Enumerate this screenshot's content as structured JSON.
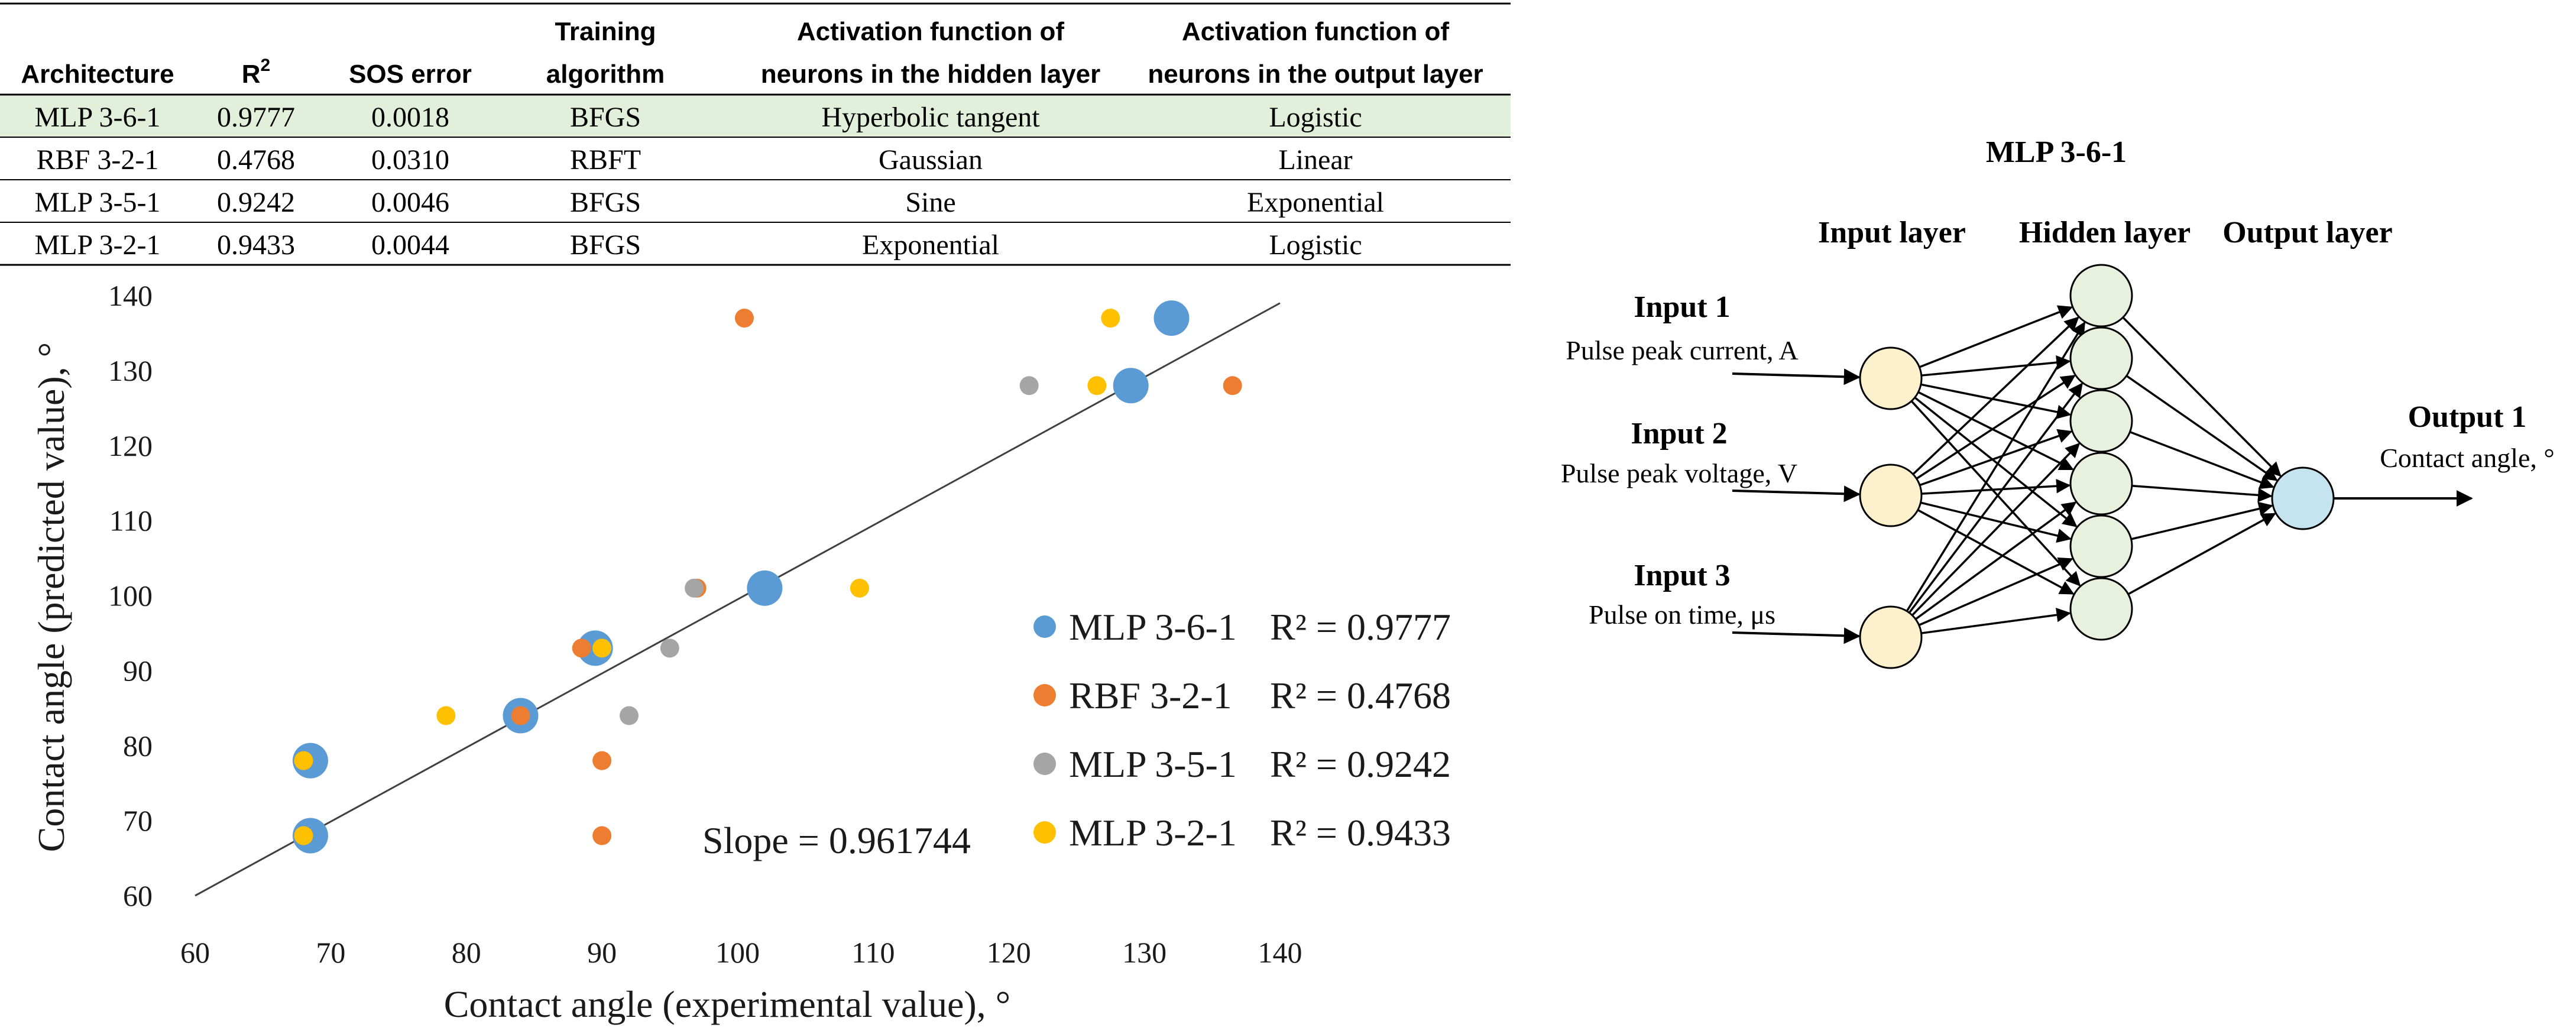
{
  "colors": {
    "highlight_row": "#e2efda",
    "mlp361": "#5b9bd5",
    "rbf321": "#ed7d31",
    "mlp351": "#a5a5a5",
    "mlp321": "#ffc000",
    "title_gold": "#c9a227",
    "input_node": "#fdf0cd",
    "hidden_node": "#e8f0de",
    "output_node": "#c6e4f0"
  },
  "table": {
    "headers": [
      [
        "",
        "Architecture"
      ],
      [
        "",
        "R"
      ],
      [
        "",
        "SOS error"
      ],
      [
        "Training",
        "algorithm"
      ],
      [
        "Activation function of",
        "neurons in the hidden layer"
      ],
      [
        "Activation function of",
        "neurons in the output layer"
      ]
    ],
    "r2_superscript": "2",
    "rows": [
      [
        "MLP 3-6-1",
        "0.9777",
        "0.0018",
        "BFGS",
        "Hyperbolic tangent",
        "Logistic"
      ],
      [
        "RBF 3-2-1",
        "0.4768",
        "0.0310",
        "RBFT",
        "Gaussian",
        "Linear"
      ],
      [
        "MLP 3-5-1",
        "0.9242",
        "0.0046",
        "BFGS",
        "Sine",
        "Exponential"
      ],
      [
        "MLP 3-2-1",
        "0.9433",
        "0.0044",
        "BFGS",
        "Exponential",
        "Logistic"
      ]
    ],
    "highlighted_row": 0
  },
  "chart_data": {
    "type": "scatter",
    "xlabel": "Contact angle (experimental value), °",
    "ylabel": "Contact angle (predicted value), °",
    "xlim": [
      60,
      140
    ],
    "ylim": [
      60,
      140
    ],
    "xticks": [
      60,
      70,
      80,
      90,
      100,
      110,
      120,
      130,
      140
    ],
    "yticks": [
      60,
      70,
      80,
      90,
      100,
      110,
      120,
      130,
      140
    ],
    "grid": false,
    "trendline": {
      "slope": 0.961744,
      "label": "Slope = 0.961744",
      "from": [
        60,
        60
      ],
      "to": [
        140,
        139
      ]
    },
    "series": [
      {
        "name": "MLP 3-6-1",
        "r2_label": "R² = 0.9777",
        "color": "#5b9bd5",
        "marker": "large",
        "points": [
          [
            68.5,
            68
          ],
          [
            68.5,
            78
          ],
          [
            84,
            84
          ],
          [
            89.5,
            93
          ],
          [
            102,
            101
          ],
          [
            129,
            128
          ],
          [
            132,
            137
          ]
        ]
      },
      {
        "name": "RBF 3-2-1",
        "r2_label": "R² = 0.4768",
        "color": "#ed7d31",
        "marker": "small",
        "points": [
          [
            68,
            68
          ],
          [
            68,
            78
          ],
          [
            84,
            84
          ],
          [
            88.5,
            93
          ],
          [
            90,
            78
          ],
          [
            90,
            68
          ],
          [
            97,
            101
          ],
          [
            100.5,
            137
          ],
          [
            136.5,
            128
          ]
        ]
      },
      {
        "name": "MLP 3-5-1",
        "r2_label": "R² = 0.9242",
        "color": "#a5a5a5",
        "marker": "small",
        "points": [
          [
            92,
            84
          ],
          [
            95,
            93
          ],
          [
            96.8,
            101
          ],
          [
            121.5,
            128
          ]
        ]
      },
      {
        "name": "MLP 3-2-1",
        "r2_label": "R² = 0.9433",
        "color": "#ffc000",
        "marker": "small",
        "points": [
          [
            68,
            68
          ],
          [
            68,
            78
          ],
          [
            78.5,
            84
          ],
          [
            90,
            93
          ],
          [
            109,
            101
          ],
          [
            126.5,
            128
          ],
          [
            127.5,
            137
          ]
        ]
      }
    ]
  },
  "network": {
    "title": "MLP 3-6-1",
    "layers": [
      "Input layer",
      "Hidden layer",
      "Output layer"
    ],
    "inputs": [
      {
        "title": "Input 1",
        "desc": "Pulse peak current, A"
      },
      {
        "title": "Input 2",
        "desc": "Pulse peak voltage, V"
      },
      {
        "title": "Input 3",
        "desc": "Pulse on time, μs"
      }
    ],
    "hidden_count": 6,
    "output": {
      "title": "Output 1",
      "desc": "Contact angle, °"
    }
  }
}
